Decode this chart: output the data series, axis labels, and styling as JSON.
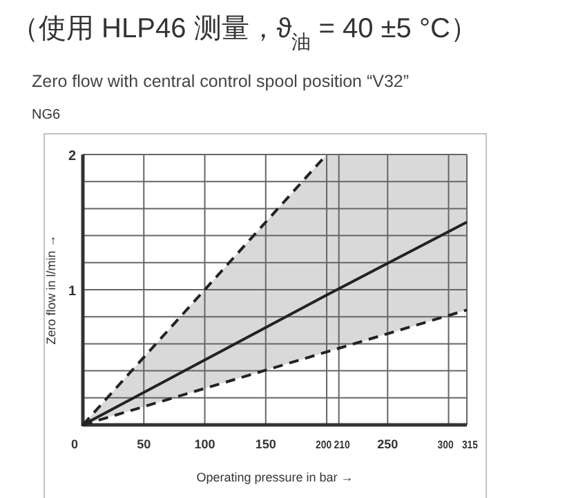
{
  "chart_data": {
    "type": "line",
    "title": "（使用 HLP46 测量，ϑ$_{油}$ = 40 ±5 °C）",
    "subtitle": "Zero flow with central control spool position “V32”",
    "annotations": [
      "NG6"
    ],
    "xlabel": "Operating pressure in bar →",
    "ylabel": "Zero flow in l/min →",
    "xlim": [
      0,
      315
    ],
    "ylim": [
      0,
      2
    ],
    "xticks": [
      0,
      50,
      100,
      150,
      200,
      210,
      250,
      300,
      315
    ],
    "yticks": [
      {
        "value": 0,
        "label": null
      },
      {
        "value": 0.2,
        "label": null
      },
      {
        "value": 0.4,
        "label": null
      },
      {
        "value": 0.6,
        "label": null
      },
      {
        "value": 0.8,
        "label": null
      },
      1,
      {
        "value": 1.2,
        "label": null
      },
      {
        "value": 1.4,
        "label": null
      },
      {
        "value": 1.6,
        "label": null
      },
      {
        "value": 1.8,
        "label": null
      },
      2
    ],
    "grid": true,
    "series": [
      {
        "color": "#222222",
        "line_style": "solid",
        "x": [
          0,
          200,
          315
        ],
        "values": [
          0,
          0.96,
          1.5
        ],
        "lower": [
          0,
          0.54,
          0.85
        ],
        "upper": [
          0,
          2,
          2
        ]
      },
      {
        "color": "#222222",
        "line_style": "dashed",
        "x": [
          0,
          200
        ],
        "values": [
          0,
          2
        ]
      },
      {
        "color": "#222222",
        "line_style": "dashed",
        "x": [
          0,
          315
        ],
        "values": [
          0,
          0.85
        ]
      }
    ]
  }
}
